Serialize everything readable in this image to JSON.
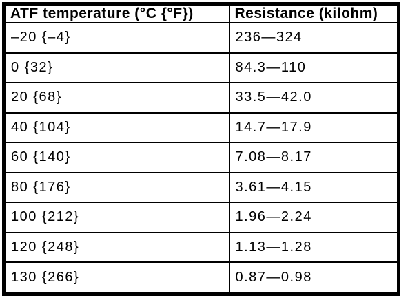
{
  "chart_data": {
    "type": "table",
    "columns": [
      "ATF temperature (°C {°F})",
      "Resistance (kilohm)"
    ],
    "rows": [
      [
        "–20 {–4}",
        "236—324"
      ],
      [
        "0 {32}",
        "84.3—110"
      ],
      [
        "20 {68}",
        "33.5—42.0"
      ],
      [
        "40 {104}",
        "14.7—17.9"
      ],
      [
        "60 {140}",
        "7.08—8.17"
      ],
      [
        "80 {176}",
        "3.61—4.15"
      ],
      [
        "100 {212}",
        "1.96—2.24"
      ],
      [
        "120 {248}",
        "1.13—1.28"
      ],
      [
        "130 {266}",
        "0.87—0.98"
      ]
    ]
  },
  "colors": {
    "background": "#ffffff",
    "border": "#000000",
    "text": "#000000"
  }
}
